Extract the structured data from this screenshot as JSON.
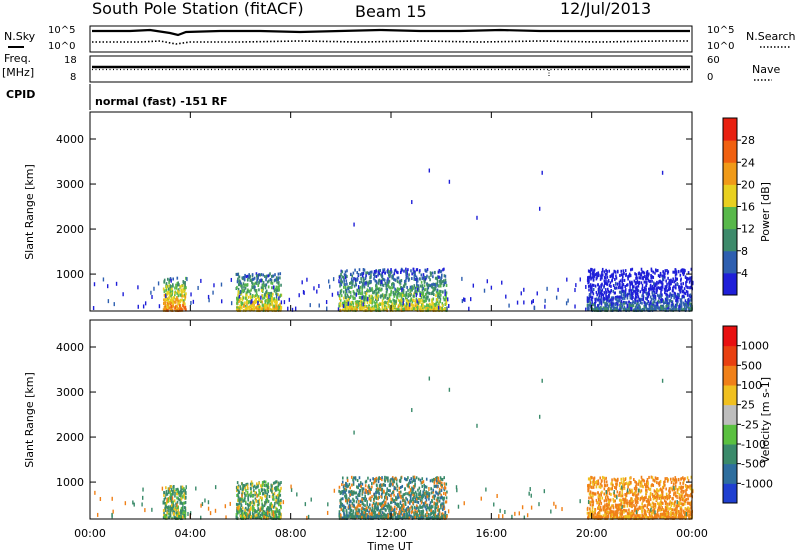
{
  "header": {
    "station": "South Pole Station (fitACF)",
    "beam": "Beam 15",
    "date": "12/Jul/2013"
  },
  "top_panels": {
    "nsky_label": "N.Sky",
    "nsearch_label": "N.Search",
    "nsky_ticks": [
      "10^5",
      "10^0"
    ],
    "nsearch_ticks": [
      "10^5",
      "10^0"
    ],
    "freq_label": "Freq.",
    "freq_unit": "[MHz]",
    "freq_ticks": [
      "18",
      "8"
    ],
    "nave_label": "Nave",
    "nave_ticks": [
      "60",
      "0"
    ],
    "cpid_label": "CPID",
    "cpid_text": "normal (fast) -151 RF"
  },
  "x_axis": {
    "ticks": [
      "00:00",
      "04:00",
      "08:00",
      "12:00",
      "16:00",
      "20:00",
      "00:00"
    ],
    "label": "Time UT"
  },
  "chart_data": [
    {
      "type": "heatmap",
      "panel": "power",
      "ylabel": "Slant Range [km]",
      "yticks": [
        "1000",
        "2000",
        "3000",
        "4000"
      ],
      "ylim": [
        180,
        4600
      ],
      "xlim": [
        0,
        24
      ],
      "colorbar": {
        "label": "Power [dB]",
        "ticks": [
          "4",
          "8",
          "12",
          "16",
          "20",
          "24",
          "28"
        ],
        "colors": [
          "#1f1fd8",
          "#2e5fb0",
          "#3d8a6b",
          "#58b84a",
          "#e8d020",
          "#f09a18",
          "#f06010",
          "#e82010"
        ]
      },
      "scatter_regions": [
        {
          "name": "echo-03-04",
          "t": [
            2.9,
            3.8
          ],
          "r": [
            180,
            900
          ],
          "value": 24
        },
        {
          "name": "echo-05-07",
          "t": [
            5.8,
            7.6
          ],
          "r": [
            180,
            1000
          ],
          "value": 20
        },
        {
          "name": "echo-10-14",
          "t": [
            9.9,
            14.2
          ],
          "r": [
            180,
            1100
          ],
          "value": 18
        },
        {
          "name": "echo-20-24",
          "t": [
            19.8,
            24.0
          ],
          "r": [
            180,
            1100
          ],
          "value": 8
        }
      ]
    },
    {
      "type": "heatmap",
      "panel": "velocity",
      "ylabel": "Slant Range [km]",
      "yticks": [
        "1000",
        "2000",
        "3000",
        "4000"
      ],
      "ylim": [
        180,
        4600
      ],
      "xlim": [
        0,
        24
      ],
      "colorbar": {
        "label": "Velocity [m s-1]",
        "ticks": [
          "1000",
          "500",
          "100",
          "25",
          "-25",
          "-100",
          "-500",
          "-1000"
        ],
        "colors": [
          "#1f3fd0",
          "#2e6e9e",
          "#3a8a6a",
          "#5ac040",
          "#bdbdbd",
          "#f0c020",
          "#f08018",
          "#e84010",
          "#e81010"
        ]
      }
    }
  ],
  "colors": {
    "power_low": "#1f1fd8",
    "power_high": "#e82010",
    "velocity_green": "#3a8a6a",
    "velocity_orange": "#f08018"
  }
}
